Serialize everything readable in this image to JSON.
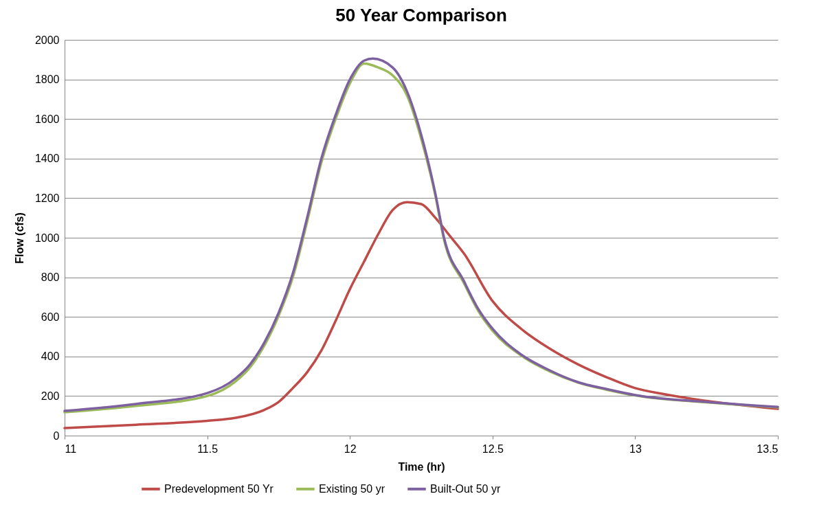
{
  "chart_data": {
    "type": "line",
    "title": "50 Year Comparison",
    "xlabel": "Time (hr)",
    "ylabel": "Flow (cfs)",
    "xlim": [
      11,
      13.5
    ],
    "xticks": [
      11,
      11.5,
      12,
      12.5,
      13,
      13.5
    ],
    "ylim": [
      0,
      2000
    ],
    "yticks": [
      0,
      200,
      400,
      600,
      800,
      1000,
      1200,
      1400,
      1600,
      1800,
      2000
    ],
    "grid": "y",
    "legend": "bottom",
    "marker": "none",
    "line_style": "solid",
    "series": [
      {
        "name": "Predevelopment 50 Yr",
        "color": "#be4b48",
        "x": [
          11,
          11.25,
          11.5,
          11.6,
          11.7,
          11.75,
          11.8,
          11.85,
          11.9,
          11.95,
          12,
          12.05,
          12.1,
          12.15,
          12.2,
          12.25,
          12.3,
          12.35,
          12.4,
          12.5,
          12.6,
          12.7,
          12.8,
          12.9,
          13,
          13.1,
          13.25,
          13.5
        ],
        "values": [
          38,
          55,
          75,
          90,
          130,
          170,
          240,
          320,
          430,
          580,
          740,
          880,
          1020,
          1140,
          1180,
          1170,
          1100,
          1010,
          920,
          680,
          540,
          440,
          360,
          295,
          240,
          210,
          175,
          135
        ]
      },
      {
        "name": "Existing 50 yr",
        "color": "#9bbb59",
        "x": [
          11,
          11.25,
          11.5,
          11.6,
          11.65,
          11.7,
          11.75,
          11.8,
          11.85,
          11.9,
          11.95,
          12,
          12.05,
          12.1,
          12.15,
          12.2,
          12.25,
          12.3,
          12.33,
          12.4,
          12.45,
          12.5,
          12.6,
          12.7,
          12.8,
          12.9,
          13,
          13.25,
          13.5
        ],
        "values": [
          118,
          150,
          200,
          275,
          345,
          455,
          605,
          800,
          1080,
          1380,
          1600,
          1780,
          1880,
          1860,
          1820,
          1720,
          1500,
          1210,
          990,
          770,
          630,
          530,
          405,
          325,
          268,
          232,
          203,
          168,
          142
        ]
      },
      {
        "name": "Built-Out 50 yr",
        "color": "#7d60a0",
        "x": [
          11,
          11.25,
          11.5,
          11.6,
          11.65,
          11.7,
          11.75,
          11.8,
          11.85,
          11.9,
          11.95,
          12,
          12.05,
          12.08,
          12.15,
          12.2,
          12.25,
          12.3,
          12.33,
          12.4,
          12.45,
          12.5,
          12.6,
          12.7,
          12.8,
          12.9,
          13,
          13.25,
          13.5
        ],
        "values": [
          125,
          160,
          215,
          290,
          360,
          470,
          620,
          820,
          1100,
          1400,
          1620,
          1800,
          1895,
          1905,
          1860,
          1740,
          1520,
          1220,
          1000,
          780,
          640,
          540,
          410,
          330,
          270,
          235,
          205,
          170,
          145
        ]
      }
    ]
  }
}
